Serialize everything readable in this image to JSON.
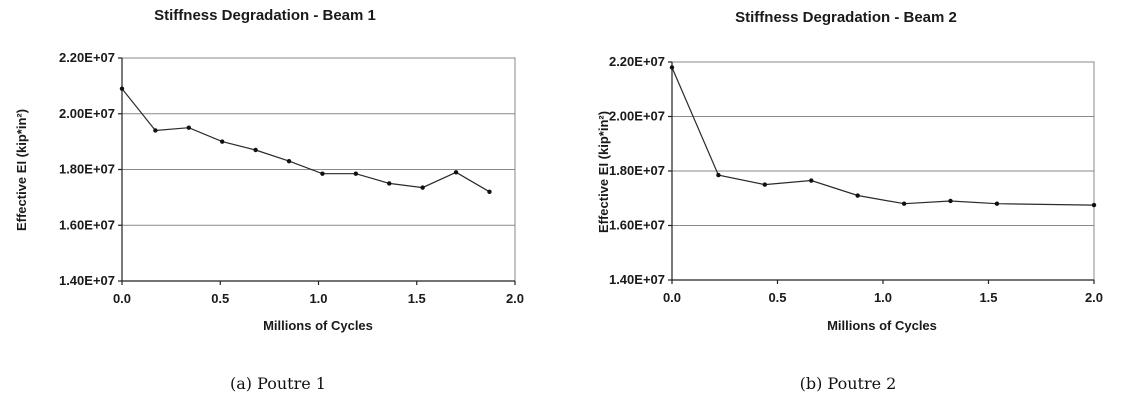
{
  "panels": [
    {
      "caption": "(a) Poutre 1",
      "chart_data": {
        "type": "line",
        "title": "Stiffness Degradation - Beam 1",
        "xlabel": "Millions of Cycles",
        "ylabel": "Effective EI (kip*in²)",
        "xlim": [
          0.0,
          2.0
        ],
        "ylim": [
          14000000.0,
          22000000.0
        ],
        "x_ticks": [
          "0.0",
          "0.5",
          "1.0",
          "1.5",
          "2.0"
        ],
        "y_ticks": [
          "1.40E+07",
          "1.60E+07",
          "1.80E+07",
          "2.00E+07",
          "2.20E+07"
        ],
        "grid": true,
        "x": [
          0.0,
          0.17,
          0.34,
          0.51,
          0.68,
          0.85,
          1.02,
          1.19,
          1.36,
          1.53,
          1.7,
          1.87
        ],
        "y": [
          20900000,
          19400000,
          19500000,
          19000000,
          18700000,
          18300000,
          17850000,
          17850000,
          17500000,
          17350000,
          17900000,
          17200000
        ]
      }
    },
    {
      "caption": "(b) Poutre 2",
      "chart_data": {
        "type": "line",
        "title": "Stiffness Degradation - Beam 2",
        "xlabel": "Millions of Cycles",
        "ylabel": "Effective EI (kip*in²)",
        "xlim": [
          0.0,
          2.0
        ],
        "ylim": [
          14000000.0,
          22000000.0
        ],
        "x_ticks": [
          "0.0",
          "0.5",
          "1.0",
          "1.5",
          "2.0"
        ],
        "y_ticks": [
          "1.40E+07",
          "1.60E+07",
          "1.80E+07",
          "2.00E+07",
          "2.20E+07"
        ],
        "grid": true,
        "x": [
          0.0,
          0.22,
          0.44,
          0.66,
          0.88,
          1.1,
          1.32,
          1.54,
          2.0
        ],
        "y": [
          21800000,
          17850000,
          17500000,
          17650000,
          17100000,
          16800000,
          16900000,
          16800000,
          16750000
        ]
      }
    }
  ]
}
